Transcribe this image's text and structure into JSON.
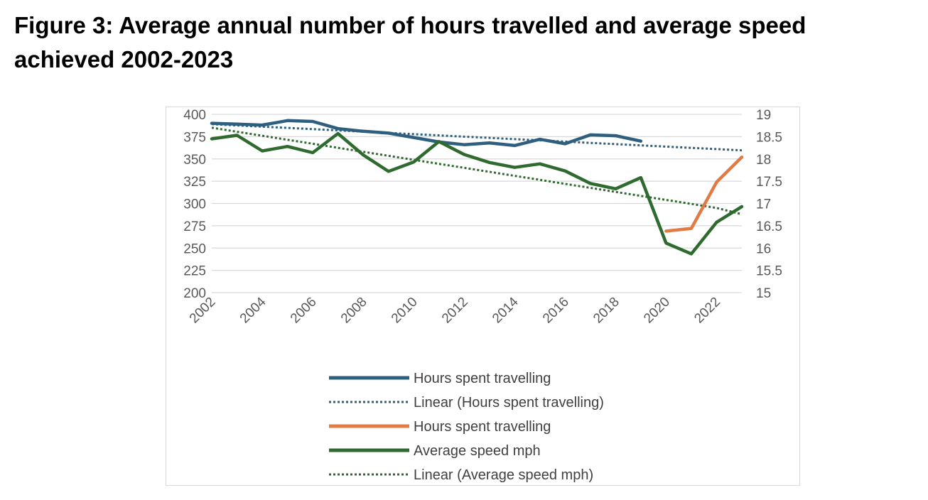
{
  "page": {
    "title_line1": "Figure 3: Average annual number of hours travelled and average speed",
    "title_line2": "achieved 2002-2023"
  },
  "colors": {
    "hours": "#2e5f7f",
    "hours_recent": "#e07b45",
    "speed": "#2f6a2f",
    "grid": "#d9d9d9",
    "tick": "#595959"
  },
  "chart_data": {
    "type": "line",
    "title": "Figure 3: Average annual number of hours travelled and average speed achieved 2002-2023",
    "x": [
      2002,
      2003,
      2004,
      2005,
      2006,
      2007,
      2008,
      2009,
      2010,
      2011,
      2012,
      2013,
      2014,
      2015,
      2016,
      2017,
      2018,
      2019,
      2020,
      2021,
      2022,
      2023
    ],
    "x_tick_labels": [
      "2002",
      "2004",
      "2006",
      "2008",
      "2010",
      "2012",
      "2014",
      "2016",
      "2018",
      "2020",
      "2022"
    ],
    "y_left": {
      "min": 200,
      "max": 400,
      "ticks": [
        "400",
        "375",
        "350",
        "325",
        "300",
        "275",
        "250",
        "225",
        "200"
      ]
    },
    "y_right": {
      "min": 15,
      "max": 19,
      "ticks": [
        "19",
        "18.5",
        "18",
        "17.5",
        "17",
        "16.5",
        "16",
        "15.5",
        "15"
      ]
    },
    "grid": true,
    "legend_position": "bottom",
    "series": [
      {
        "name": "Hours spent travelling",
        "axis": "left",
        "style": "solid",
        "color_key": "hours",
        "values": [
          390,
          389,
          388,
          393,
          392,
          384,
          381,
          379,
          374,
          369,
          366,
          368,
          365,
          372,
          367,
          377,
          376,
          370,
          null,
          null,
          null,
          null
        ]
      },
      {
        "name": "Linear (Hours spent travelling)",
        "axis": "left",
        "style": "dotted",
        "color_key": "hours",
        "values": [
          389,
          387.6,
          386.2,
          384.8,
          383.4,
          382,
          380.6,
          379.2,
          377.8,
          376.4,
          375,
          373.6,
          372.2,
          370.8,
          369.4,
          368,
          366.6,
          365.2,
          363.8,
          362.4,
          361,
          359.6
        ]
      },
      {
        "name": "Hours spent travelling",
        "axis": "left",
        "style": "solid",
        "color_key": "hours_recent",
        "values": [
          null,
          null,
          null,
          null,
          null,
          null,
          null,
          null,
          null,
          null,
          null,
          null,
          null,
          null,
          null,
          null,
          null,
          null,
          269,
          272,
          324,
          352
        ]
      },
      {
        "name": "Average speed mph",
        "axis": "right",
        "style": "solid",
        "color_key": "speed",
        "values": [
          18.45,
          18.53,
          18.18,
          18.28,
          18.14,
          18.57,
          18.09,
          17.72,
          17.93,
          18.39,
          18.1,
          17.92,
          17.81,
          17.89,
          17.73,
          17.45,
          17.33,
          17.58,
          16.11,
          15.87,
          16.58,
          16.93
        ]
      },
      {
        "name": "Linear (Average speed mph)",
        "axis": "right",
        "style": "dotted",
        "color_key": "speed",
        "values": [
          18.7,
          18.61,
          18.52,
          18.43,
          18.34,
          18.25,
          18.16,
          18.07,
          17.98,
          17.89,
          17.8,
          17.71,
          17.62,
          17.53,
          17.44,
          17.35,
          17.26,
          17.17,
          17.08,
          16.99,
          16.9,
          16.76
        ]
      }
    ]
  }
}
